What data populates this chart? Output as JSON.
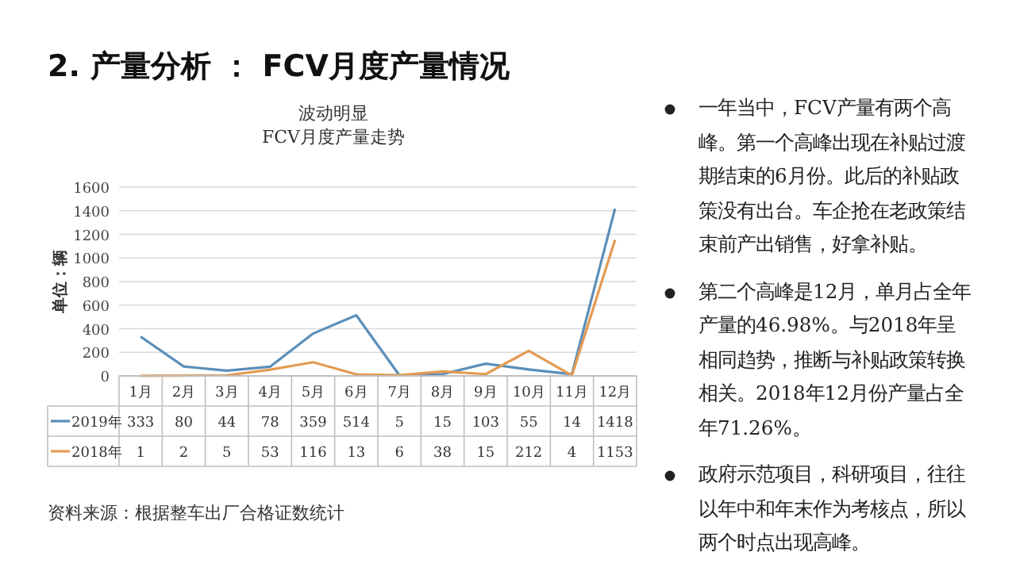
{
  "chart_data": [
    {
      "type": "line",
      "title": "波动明显",
      "subtitle": "FCV月度产量走势",
      "ylabel": "单位：辆",
      "categories": [
        "1月",
        "2月",
        "3月",
        "4月",
        "5月",
        "6月",
        "7月",
        "8月",
        "9月",
        "10月",
        "11月",
        "12月"
      ],
      "series": [
        {
          "name": "2019年",
          "color": "#5b8fb9",
          "values": [
            333,
            80,
            44,
            78,
            359,
            514,
            5,
            15,
            103,
            55,
            14,
            1418
          ]
        },
        {
          "name": "2018年",
          "color": "#e39a52",
          "values": [
            1,
            2,
            5,
            53,
            116,
            13,
            6,
            38,
            15,
            212,
            4,
            1153
          ]
        }
      ],
      "ylim": [
        0,
        1600
      ],
      "yticks": [
        0,
        200,
        400,
        600,
        800,
        1000,
        1200,
        1400,
        1600
      ],
      "grid": "y",
      "legend": "bottom",
      "data_labels": true,
      "annotations": [
        "2. 产量分析 ： FCV月度产量情况",
        "资料来源：根据整车出厂合格证数统计"
      ]
    },
    {
      "type": "other",
      "annotations": [
        "一年当中，FCV产量有两个高峰。第一个高峰出现在补贴过渡期结束的6月份。此后的补贴政策没有出台。车企抢在老政策结束前产出销售，好拿补贴。",
        "第二个高峰是12月，单月占全年产量的46.98%。与2018年呈相同趋势，推断与补贴政策转换相关。2018年12月份产量占全年71.26%。",
        "政府示范项目，科研项目，往往以年中和年末作为考核点，所以两个时点出现高峰。"
      ]
    }
  ]
}
